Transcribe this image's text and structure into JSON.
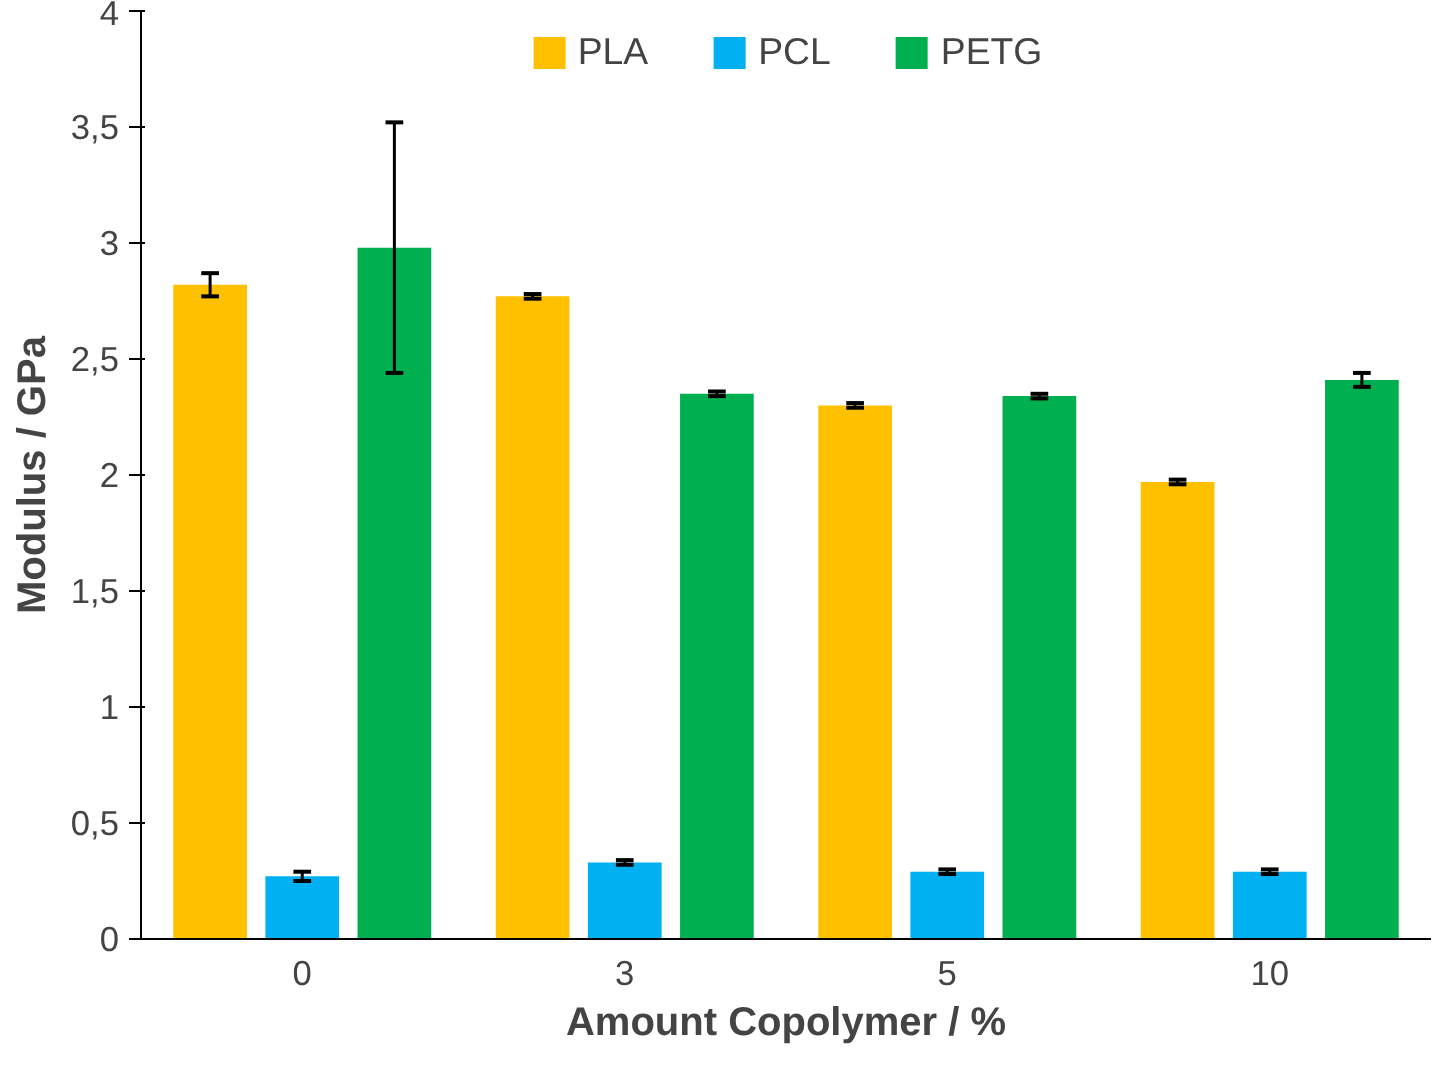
{
  "chart_data": {
    "type": "bar",
    "xlabel": "Amount Copolymer / %",
    "ylabel": "Modulus / GPa",
    "categories": [
      "0",
      "3",
      "5",
      "10"
    ],
    "series": [
      {
        "name": "PLA",
        "color": "#ffc000",
        "values": [
          2.82,
          2.77,
          2.3,
          1.97
        ],
        "errors": [
          0.05,
          0.01,
          0.01,
          0.01
        ]
      },
      {
        "name": "PCL",
        "color": "#00b0f0",
        "values": [
          0.27,
          0.33,
          0.29,
          0.29
        ],
        "errors": [
          0.02,
          0.01,
          0.01,
          0.01
        ]
      },
      {
        "name": "PETG",
        "color": "#00b050",
        "values": [
          2.98,
          2.35,
          2.34,
          2.41
        ],
        "errors": [
          0.54,
          0.01,
          0.01,
          0.03
        ]
      }
    ],
    "ylim": [
      0,
      4
    ],
    "yticks": [
      0,
      {
        "value": 0.5,
        "label": "0,5"
      },
      1,
      {
        "value": 1.5,
        "label": "1,5"
      },
      2,
      {
        "value": 2.5,
        "label": "2,5"
      },
      3,
      {
        "value": 3.5,
        "label": "3,5"
      },
      4
    ],
    "legend": "top",
    "grid": false
  }
}
